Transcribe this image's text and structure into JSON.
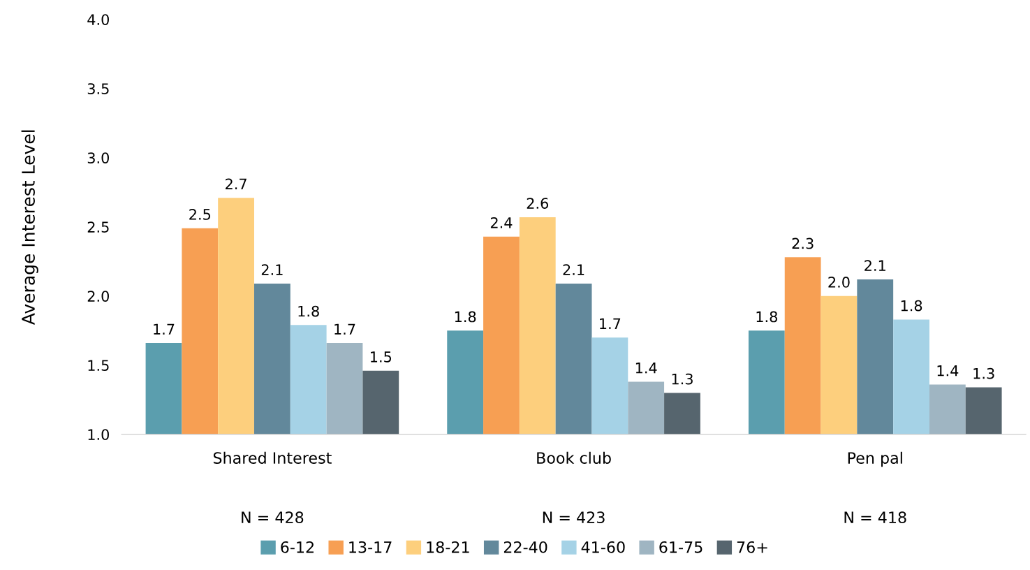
{
  "chart_data": {
    "type": "bar",
    "ylabel": "Average Interest Level",
    "categories": [
      "Shared Interest",
      "Book club",
      "Pen pal"
    ],
    "annotations": [
      "N = 428",
      "N = 423",
      "N = 418"
    ],
    "series": [
      {
        "name": "6-12",
        "color": "#5b9eae",
        "values": [
          1.66,
          1.75,
          1.75
        ],
        "value_labels": [
          "1.7",
          "1.8",
          "1.8"
        ]
      },
      {
        "name": "13-17",
        "color": "#f79f53",
        "values": [
          2.49,
          2.43,
          2.28
        ],
        "value_labels": [
          "2.5",
          "2.4",
          "2.3"
        ]
      },
      {
        "name": "18-21",
        "color": "#fdcf7d",
        "values": [
          2.71,
          2.57,
          2.0
        ],
        "value_labels": [
          "2.7",
          "2.6",
          "2.0"
        ]
      },
      {
        "name": "22-40",
        "color": "#62889b",
        "values": [
          2.09,
          2.09,
          2.12
        ],
        "value_labels": [
          "2.1",
          "2.1",
          "2.1"
        ]
      },
      {
        "name": "41-60",
        "color": "#a5d2e6",
        "values": [
          1.79,
          1.7,
          1.83
        ],
        "value_labels": [
          "1.8",
          "1.7",
          "1.8"
        ]
      },
      {
        "name": "61-75",
        "color": "#9fb5c2",
        "values": [
          1.66,
          1.38,
          1.36
        ],
        "value_labels": [
          "1.7",
          "1.4",
          "1.4"
        ]
      },
      {
        "name": "76+",
        "color": "#56656e",
        "values": [
          1.46,
          1.3,
          1.34
        ],
        "value_labels": [
          "1.5",
          "1.3",
          "1.3"
        ]
      }
    ],
    "ylim": [
      1.0,
      4.0
    ],
    "yticks": [
      {
        "value": 1.0,
        "label": "1.0"
      },
      {
        "value": 1.5,
        "label": "1.5"
      },
      {
        "value": 2.0,
        "label": "2.0"
      },
      {
        "value": 2.5,
        "label": "2.5"
      },
      {
        "value": 3.0,
        "label": "3.0"
      },
      {
        "value": 3.5,
        "label": "3.5"
      },
      {
        "value": 4.0,
        "label": "4.0"
      }
    ],
    "grid": false,
    "legend": "bottom"
  }
}
